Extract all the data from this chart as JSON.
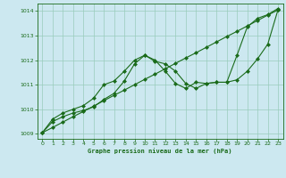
{
  "title": "Graphe pression niveau de la mer (hPa)",
  "background_color": "#cce8f0",
  "plot_bg_color": "#cce8f0",
  "line_color": "#1a6b1a",
  "grid_color": "#99ccbb",
  "tick_color": "#1a6b1a",
  "xlim": [
    -0.5,
    23.5
  ],
  "ylim": [
    1008.8,
    1014.3
  ],
  "yticks": [
    1009,
    1010,
    1011,
    1012,
    1013,
    1014
  ],
  "xticks": [
    0,
    1,
    2,
    3,
    4,
    5,
    6,
    7,
    8,
    9,
    10,
    11,
    12,
    13,
    14,
    15,
    16,
    17,
    18,
    19,
    20,
    21,
    22,
    23
  ],
  "line1_straight": {
    "x": [
      0,
      1,
      2,
      3,
      4,
      5,
      6,
      7,
      8,
      9,
      10,
      11,
      12,
      13,
      14,
      15,
      16,
      17,
      18,
      19,
      20,
      21,
      22,
      23
    ],
    "y": [
      1009.05,
      1009.26,
      1009.48,
      1009.7,
      1009.91,
      1010.13,
      1010.35,
      1010.57,
      1010.78,
      1011.0,
      1011.22,
      1011.43,
      1011.65,
      1011.87,
      1012.09,
      1012.3,
      1012.52,
      1012.74,
      1012.96,
      1013.17,
      1013.39,
      1013.61,
      1013.83,
      1014.04
    ]
  },
  "line2_hump": {
    "x": [
      0,
      1,
      2,
      3,
      4,
      5,
      6,
      7,
      8,
      9,
      10,
      11,
      12,
      13,
      14,
      15,
      16,
      17,
      18,
      19,
      20,
      21,
      22,
      23
    ],
    "y": [
      1009.05,
      1009.6,
      1009.85,
      1010.0,
      1010.15,
      1010.45,
      1011.0,
      1011.15,
      1011.55,
      1012.0,
      1012.2,
      1011.95,
      1011.85,
      1011.55,
      1011.05,
      1010.85,
      1011.05,
      1011.1,
      1011.1,
      1011.2,
      1011.55,
      1012.05,
      1012.65,
      1014.05
    ]
  },
  "line3_valley": {
    "x": [
      0,
      1,
      2,
      3,
      4,
      5,
      6,
      7,
      8,
      9,
      10,
      11,
      12,
      13,
      14,
      15,
      16,
      17,
      18,
      19,
      20,
      21,
      22,
      23
    ],
    "y": [
      1009.05,
      1009.5,
      1009.7,
      1009.85,
      1009.95,
      1010.1,
      1010.4,
      1010.65,
      1011.15,
      1011.85,
      1012.2,
      1012.0,
      1011.55,
      1011.05,
      1010.85,
      1011.1,
      1011.05,
      1011.1,
      1011.1,
      1012.2,
      1013.35,
      1013.7,
      1013.85,
      1014.1
    ]
  }
}
